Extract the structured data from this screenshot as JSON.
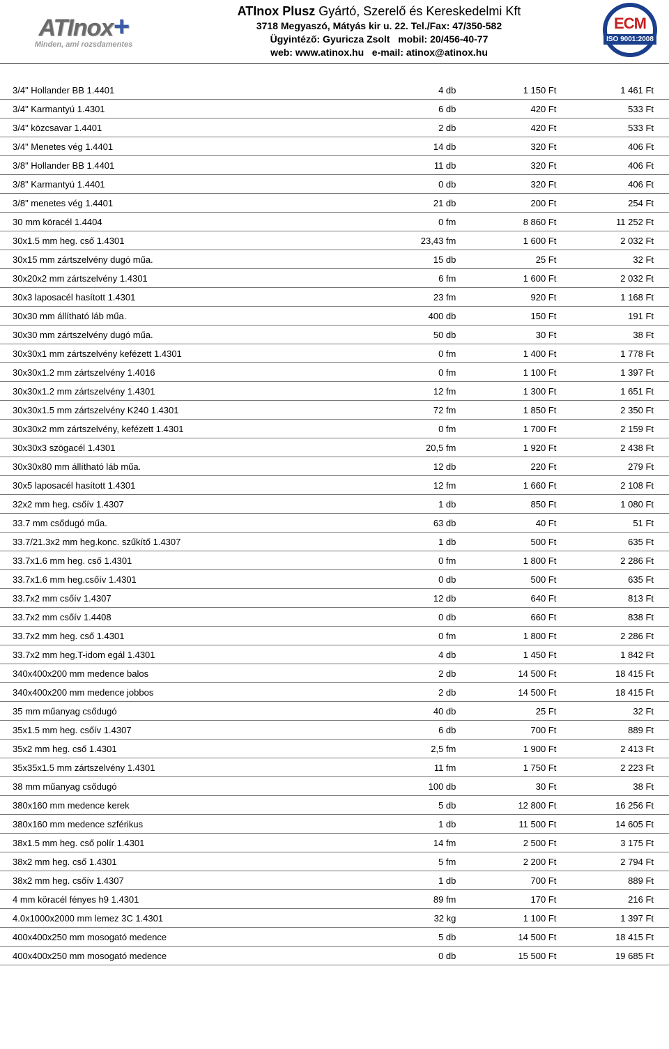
{
  "header": {
    "logo_main": "ATInox",
    "logo_plus": "+",
    "logo_tagline": "Minden, ami rozsdamentes",
    "company_name_bold": "ATInox Plusz",
    "company_name_rest": " Gyártó, Szerelő és Kereskedelmi Kft",
    "address": "3718 Megyaszó, Mátyás kir u. 22. Tel./Fax: 47/350-582",
    "contact": "Ügyintéző: Gyuricza Zsolt   mobil: 20/456-40-77",
    "web_label": "web: ",
    "web_url": "www.atinox.hu",
    "email_label": "   e-mail: ",
    "email": "atinox@atinox.hu",
    "cert_letters": "ECM",
    "cert_iso": "ISO 9001:2008"
  },
  "columns": [
    "desc",
    "qty",
    "p1",
    "p2"
  ],
  "rows": [
    [
      "3/4\" Hollander BB 1.4401",
      "4 db",
      "1 150 Ft",
      "1 461 Ft"
    ],
    [
      "3/4\" Karmantyú 1.4301",
      "6 db",
      "420 Ft",
      "533 Ft"
    ],
    [
      "3/4\" közcsavar 1.4401",
      "2 db",
      "420 Ft",
      "533 Ft"
    ],
    [
      "3/4\" Menetes vég 1.4401",
      "14 db",
      "320 Ft",
      "406 Ft"
    ],
    [
      "3/8\" Hollander BB 1.4401",
      "11 db",
      "320 Ft",
      "406 Ft"
    ],
    [
      "3/8\" Karmantyú 1.4401",
      "0 db",
      "320 Ft",
      "406 Ft"
    ],
    [
      "3/8\" menetes vég 1.4401",
      "21 db",
      "200 Ft",
      "254 Ft"
    ],
    [
      "30 mm köracél 1.4404",
      "0 fm",
      "8 860 Ft",
      "11 252 Ft"
    ],
    [
      "30x1.5 mm heg. cső 1.4301",
      "23,43 fm",
      "1 600 Ft",
      "2 032 Ft"
    ],
    [
      "30x15 mm zártszelvény dugó műa.",
      "15 db",
      "25 Ft",
      "32 Ft"
    ],
    [
      "30x20x2 mm zártszelvény 1.4301",
      "6 fm",
      "1 600 Ft",
      "2 032 Ft"
    ],
    [
      "30x3 laposacél hasított 1.4301",
      "23 fm",
      "920 Ft",
      "1 168 Ft"
    ],
    [
      "30x30 mm állítható láb műa.",
      "400 db",
      "150 Ft",
      "191 Ft"
    ],
    [
      "30x30 mm zártszelvény dugó műa.",
      "50 db",
      "30 Ft",
      "38 Ft"
    ],
    [
      "30x30x1 mm zártszelvény kefézett 1.4301",
      "0 fm",
      "1 400 Ft",
      "1 778 Ft"
    ],
    [
      "30x30x1.2 mm zártszelvény 1.4016",
      "0 fm",
      "1 100 Ft",
      "1 397 Ft"
    ],
    [
      "30x30x1.2 mm zártszelvény 1.4301",
      "12 fm",
      "1 300 Ft",
      "1 651 Ft"
    ],
    [
      "30x30x1.5 mm zártszelvény K240 1.4301",
      "72 fm",
      "1 850 Ft",
      "2 350 Ft"
    ],
    [
      "30x30x2 mm zártszelvény, kefézett 1.4301",
      "0 fm",
      "1 700 Ft",
      "2 159 Ft"
    ],
    [
      "30x30x3 szögacél 1.4301",
      "20,5 fm",
      "1 920 Ft",
      "2 438 Ft"
    ],
    [
      "30x30x80 mm állítható láb műa.",
      "12 db",
      "220 Ft",
      "279 Ft"
    ],
    [
      "30x5 laposacél hasított 1.4301",
      "12 fm",
      "1 660 Ft",
      "2 108 Ft"
    ],
    [
      "32x2 mm heg. csőív 1.4307",
      "1 db",
      "850 Ft",
      "1 080 Ft"
    ],
    [
      "33.7 mm csődugó műa.",
      "63 db",
      "40 Ft",
      "51 Ft"
    ],
    [
      "33.7/21.3x2 mm heg.konc. szűkítő 1.4307",
      "1 db",
      "500 Ft",
      "635 Ft"
    ],
    [
      "33.7x1.6 mm heg. cső 1.4301",
      "0 fm",
      "1 800 Ft",
      "2 286 Ft"
    ],
    [
      "33.7x1.6 mm heg.csőív 1.4301",
      "0 db",
      "500 Ft",
      "635 Ft"
    ],
    [
      "33.7x2 mm csőív 1.4307",
      "12 db",
      "640 Ft",
      "813 Ft"
    ],
    [
      "33.7x2 mm csőív 1.4408",
      "0 db",
      "660 Ft",
      "838 Ft"
    ],
    [
      "33.7x2 mm heg. cső 1.4301",
      "0 fm",
      "1 800 Ft",
      "2 286 Ft"
    ],
    [
      "33.7x2 mm heg.T-idom egál 1.4301",
      "4 db",
      "1 450 Ft",
      "1 842 Ft"
    ],
    [
      "340x400x200 mm medence balos",
      "2 db",
      "14 500 Ft",
      "18 415 Ft"
    ],
    [
      "340x400x200 mm medence jobbos",
      "2 db",
      "14 500 Ft",
      "18 415 Ft"
    ],
    [
      "35 mm műanyag csődugó",
      "40 db",
      "25 Ft",
      "32 Ft"
    ],
    [
      "35x1.5 mm heg. csőív 1.4307",
      "6 db",
      "700 Ft",
      "889 Ft"
    ],
    [
      "35x2 mm heg. cső 1.4301",
      "2,5 fm",
      "1 900 Ft",
      "2 413 Ft"
    ],
    [
      "35x35x1.5 mm zártszelvény 1.4301",
      "11 fm",
      "1 750 Ft",
      "2 223 Ft"
    ],
    [
      "38 mm műanyag csődugó",
      "100 db",
      "30 Ft",
      "38 Ft"
    ],
    [
      "380x160 mm medence kerek",
      "5 db",
      "12 800 Ft",
      "16 256 Ft"
    ],
    [
      "380x160 mm medence szférikus",
      "1 db",
      "11 500 Ft",
      "14 605 Ft"
    ],
    [
      "38x1.5 mm heg. cső polír 1.4301",
      "14 fm",
      "2 500 Ft",
      "3 175 Ft"
    ],
    [
      "38x2 mm heg. cső 1.4301",
      "5 fm",
      "2 200 Ft",
      "2 794 Ft"
    ],
    [
      "38x2 mm heg. csőív 1.4307",
      "1 db",
      "700 Ft",
      "889 Ft"
    ],
    [
      "4 mm köracél fényes h9 1.4301",
      "89 fm",
      "170 Ft",
      "216 Ft"
    ],
    [
      "4.0x1000x2000 mm lemez 3C 1.4301",
      "32 kg",
      "1 100 Ft",
      "1 397 Ft"
    ],
    [
      "400x400x250 mm mosogató medence",
      "5 db",
      "14 500 Ft",
      "18 415 Ft"
    ],
    [
      "400x400x250 mm mosogató medence",
      "0 db",
      "15 500 Ft",
      "19 685 Ft"
    ]
  ]
}
